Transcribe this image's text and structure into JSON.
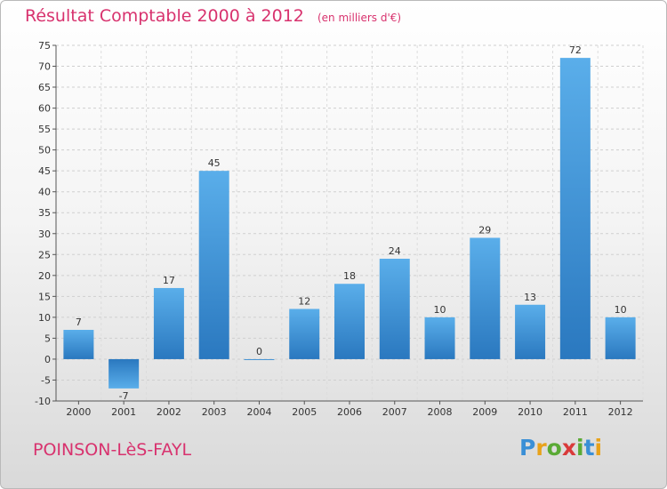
{
  "title": "Résultat Comptable 2000 à 2012",
  "subtitle": "(en milliers d'€)",
  "commune": "POINSON-LèS-FAYL",
  "logo": {
    "letters": [
      "P",
      "r",
      "o",
      "x",
      "i",
      "t",
      "i"
    ],
    "colors": [
      "#3a8fd6",
      "#e8a21a",
      "#5aaa35",
      "#d93a3a",
      "#5aaa35",
      "#3a8fd6",
      "#e8a21a"
    ]
  },
  "colors": {
    "bar": "#3d97db",
    "bar_dark": "#2a78bf",
    "title": "#d8326e"
  },
  "chart_data": {
    "type": "bar",
    "categories": [
      "2000",
      "2001",
      "2002",
      "2003",
      "2004",
      "2005",
      "2006",
      "2007",
      "2008",
      "2009",
      "2010",
      "2011",
      "2012"
    ],
    "values": [
      7,
      -7,
      17,
      45,
      0,
      12,
      18,
      24,
      10,
      29,
      13,
      72,
      10
    ],
    "ylim": [
      -10,
      75
    ],
    "yticks": [
      -10,
      -5,
      0,
      5,
      10,
      15,
      20,
      25,
      30,
      35,
      40,
      45,
      50,
      55,
      60,
      65,
      70,
      75
    ],
    "grid": true
  }
}
